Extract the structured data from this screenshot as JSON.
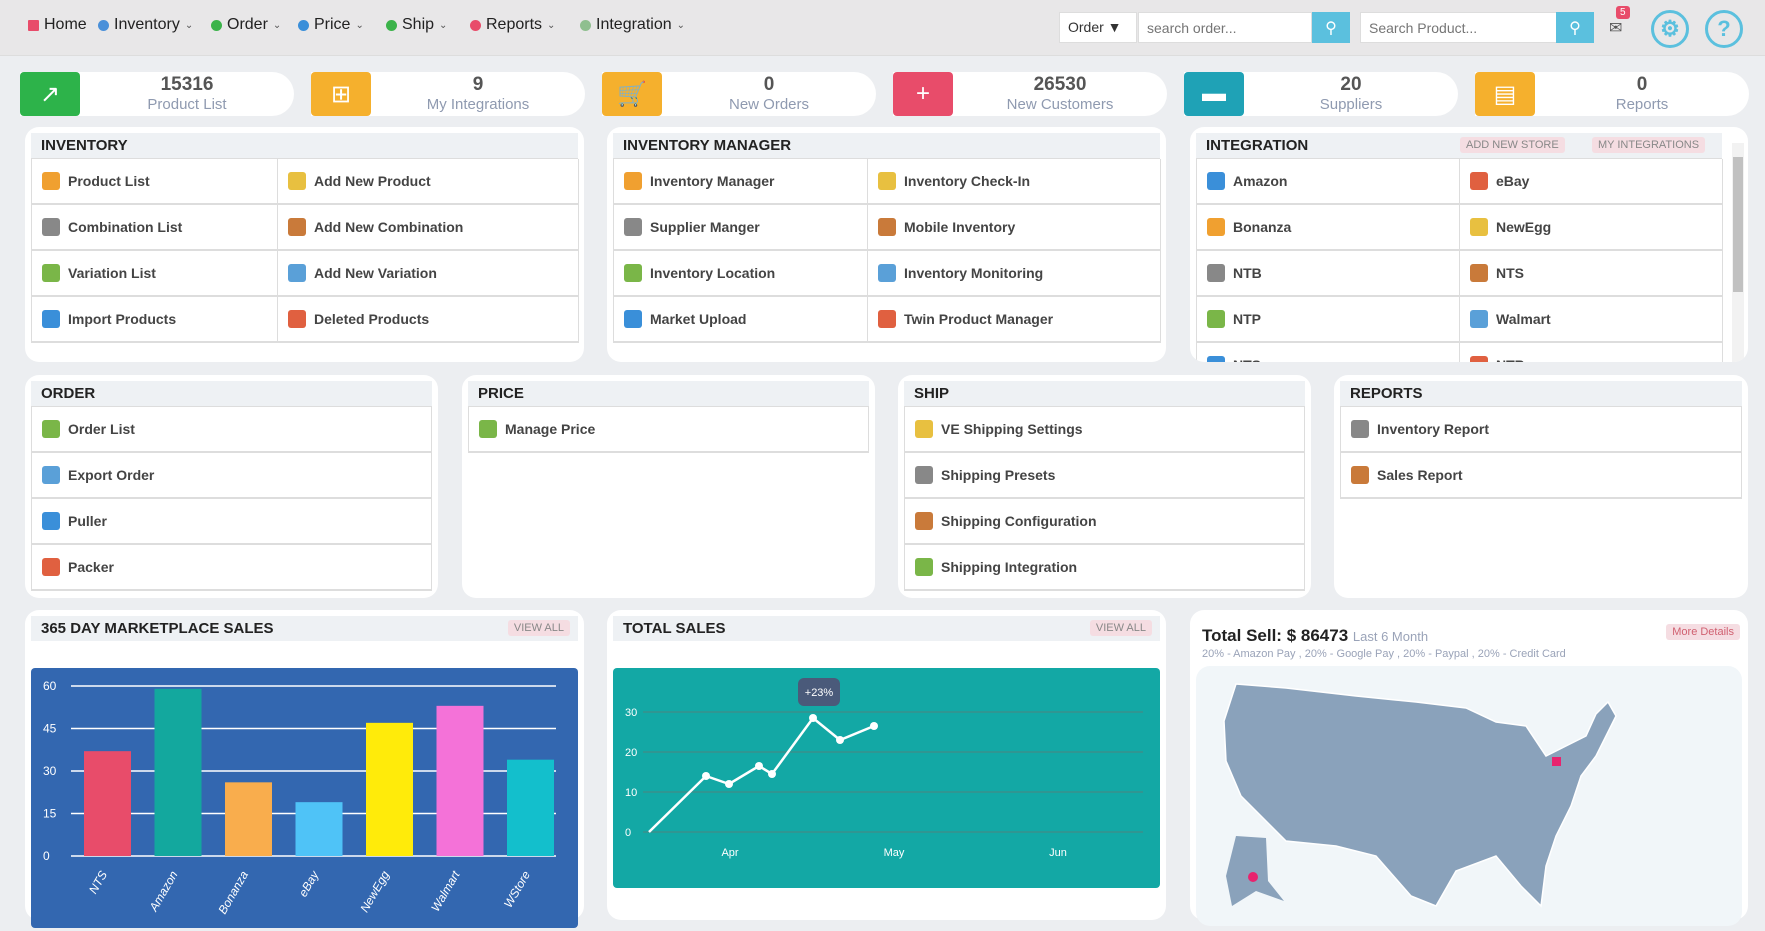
{
  "nav": {
    "items": [
      {
        "label": "Home",
        "icon": "home-icon",
        "color": "#e84c6a"
      },
      {
        "label": "Inventory",
        "icon": "share-icon",
        "color": "#4a90d9"
      },
      {
        "label": "Order",
        "icon": "circle-icon",
        "color": "#3bb34a"
      },
      {
        "label": "Price",
        "icon": "price-icon",
        "color": "#3a8fd9"
      },
      {
        "label": "Ship",
        "icon": "car-icon",
        "color": "#3bb34a"
      },
      {
        "label": "Reports",
        "icon": "pdf-icon",
        "color": "#e84c6a"
      },
      {
        "label": "Integration",
        "icon": "integration-icon",
        "color": "#8fbf8f"
      }
    ],
    "order_select": "Order",
    "order_search_placeholder": "search order...",
    "product_search_placeholder": "Search Product...",
    "notification_count": "5"
  },
  "stats": [
    {
      "value": "15316",
      "label": "Product List",
      "color": "#2db34a"
    },
    {
      "value": "9",
      "label": "My Integrations",
      "color": "#f5b02d"
    },
    {
      "value": "0",
      "label": "New Orders",
      "color": "#f5b02d"
    },
    {
      "value": "26530",
      "label": "New Customers",
      "color": "#e84c6a"
    },
    {
      "value": "20",
      "label": "Suppliers",
      "color": "#1fa2b6"
    },
    {
      "value": "0",
      "label": "Reports",
      "color": "#f5b02d"
    }
  ],
  "inventory": {
    "title": "INVENTORY",
    "items": [
      "Product List",
      "Add New Product",
      "Combination List",
      "Add New Combination",
      "Variation List",
      "Add New Variation",
      "Import Products",
      "Deleted Products"
    ]
  },
  "inventory_manager": {
    "title": "INVENTORY MANAGER",
    "items": [
      "Inventory Manager",
      "Inventory Check-In",
      "Supplier Manger",
      "Mobile Inventory",
      "Inventory Location",
      "Inventory Monitoring",
      "Market Upload",
      "Twin Product Manager"
    ]
  },
  "integration": {
    "title": "INTEGRATION",
    "add_store": "ADD NEW STORE",
    "my_integrations": "MY INTEGRATIONS",
    "items": [
      "Amazon",
      "eBay",
      "Bonanza",
      "NewEgg",
      "NTB",
      "NTS",
      "NTP",
      "Walmart",
      "NTS",
      "NTB"
    ]
  },
  "order": {
    "title": "ORDER",
    "items": [
      "Order List",
      "Export Order",
      "Puller",
      "Packer"
    ]
  },
  "price": {
    "title": "PRICE",
    "items": [
      "Manage Price"
    ]
  },
  "ship": {
    "title": "SHIP",
    "items": [
      "VE Shipping Settings",
      "Shipping Presets",
      "Shipping Configuration",
      "Shipping Integration"
    ]
  },
  "reports": {
    "title": "REPORTS",
    "items": [
      "Inventory Report",
      "Sales Report"
    ]
  },
  "marketplace": {
    "title": "365 DAY MARKETPLACE SALES",
    "view_all": "VIEW ALL"
  },
  "total_sales": {
    "title": "TOTAL SALES",
    "view_all": "VIEW ALL",
    "tooltip": "+23%"
  },
  "sell": {
    "title": "Total Sell: $ 86473",
    "period": "Last 6 Month",
    "breakdown": "20% - Amazon Pay , 20% - Google Pay , 20% - Paypal , 20% - Credit Card",
    "more": "More Details"
  },
  "chart_data": [
    {
      "type": "bar",
      "categories": [
        "NTS",
        "Amazon",
        "Bonanza",
        "eBay",
        "NewEgg",
        "Walmart",
        "WStore"
      ],
      "values": [
        37,
        59,
        26,
        19,
        47,
        53,
        34
      ],
      "colors": [
        "#e84c6a",
        "#13a89e",
        "#f9ad4d",
        "#4fc3f7",
        "#ffeb0a",
        "#f472d8",
        "#13bfcc"
      ],
      "ylim": [
        0,
        60
      ],
      "yticks": [
        0,
        15,
        30,
        45,
        60
      ],
      "grid": true
    },
    {
      "type": "line",
      "values": [
        0,
        14,
        12,
        16.5,
        14.5,
        28.5,
        23,
        26.5
      ],
      "xticks": [
        "Apr",
        "May",
        "Jun"
      ],
      "ylim": [
        0,
        30
      ],
      "yticks": [
        0,
        10,
        20,
        30
      ],
      "grid": true
    }
  ]
}
